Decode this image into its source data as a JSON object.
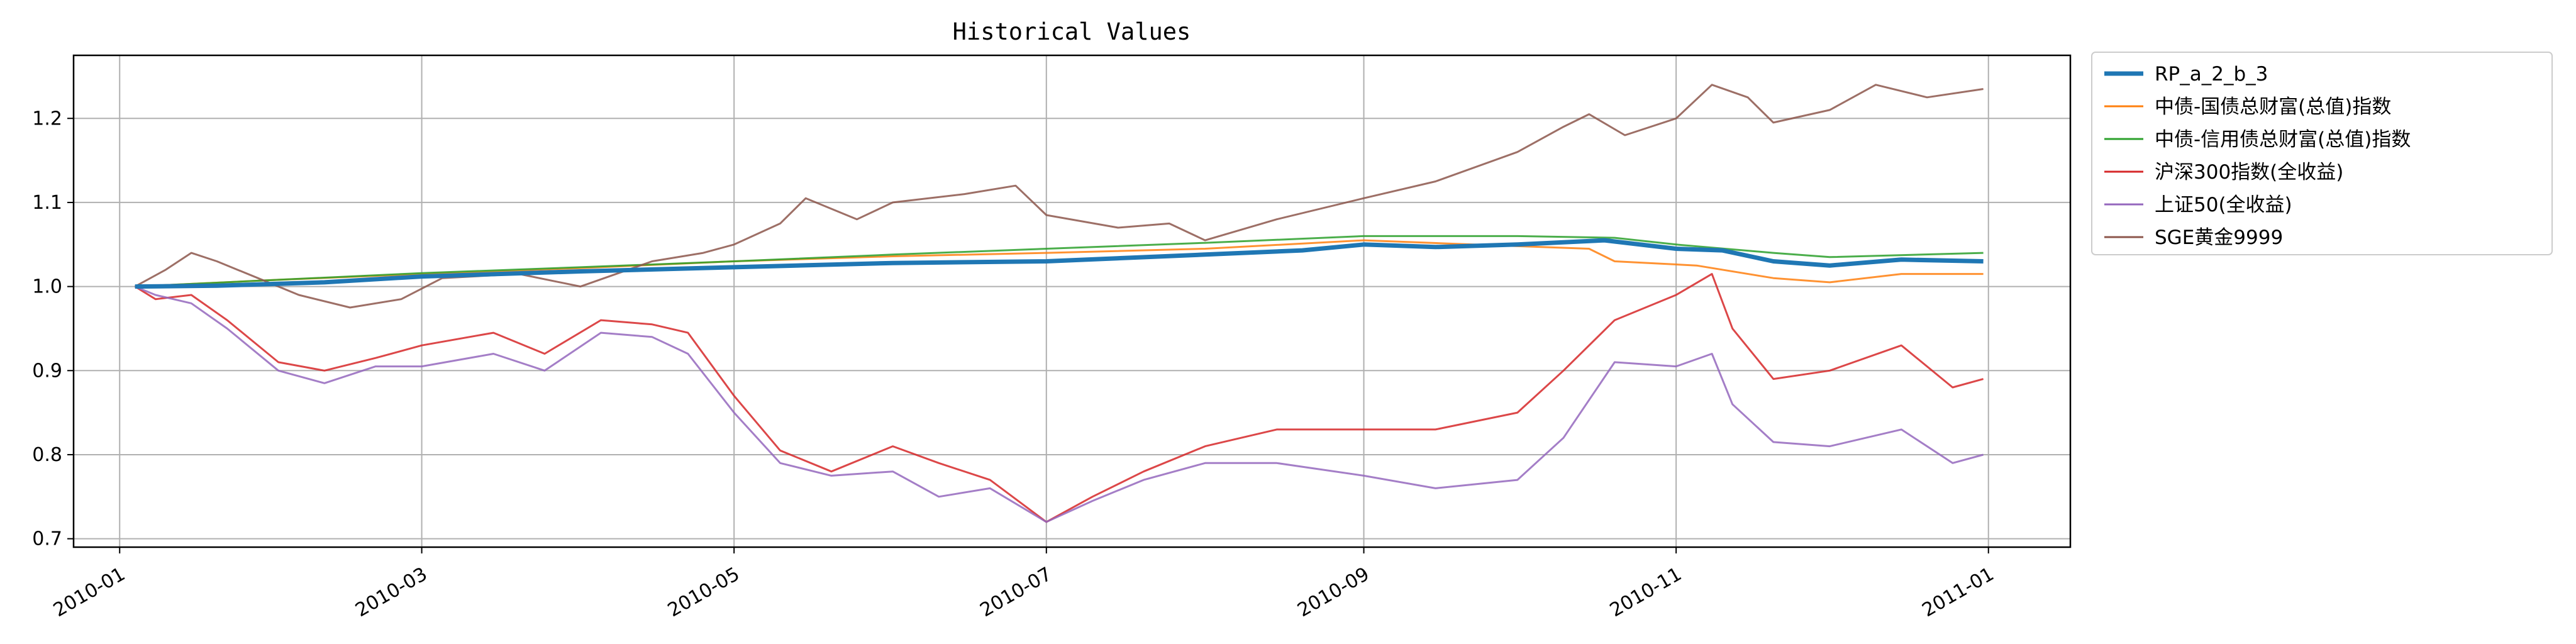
{
  "chart_data": {
    "type": "line",
    "title": "Historical Values",
    "xlabel": "",
    "ylabel": "",
    "xlim": [
      "2009-12-23",
      "2011-01-17"
    ],
    "ylim": [
      0.69,
      1.275
    ],
    "x_ticks": [
      "2010-01-01",
      "2010-03-01",
      "2010-05-01",
      "2010-07-01",
      "2010-09-01",
      "2010-11-01",
      "2011-01-01"
    ],
    "x_tick_labels": [
      "2010-01",
      "2010-03",
      "2010-05",
      "2010-07",
      "2010-09",
      "2010-11",
      "2011-01"
    ],
    "y_ticks": [
      0.7,
      0.8,
      0.9,
      1.0,
      1.1,
      1.2
    ],
    "y_tick_labels": [
      "0.7",
      "0.8",
      "0.9",
      "1.0",
      "1.1",
      "1.2"
    ],
    "grid": true,
    "legend_position": "outside-top-right",
    "series": [
      {
        "name": "RP_a_2_b_3",
        "color": "#1f77b4",
        "points": [
          [
            "2010-01-04",
            1.0
          ],
          [
            "2010-01-20",
            1.001
          ],
          [
            "2010-02-10",
            1.005
          ],
          [
            "2010-03-01",
            1.012
          ],
          [
            "2010-04-01",
            1.018
          ],
          [
            "2010-05-01",
            1.023
          ],
          [
            "2010-06-01",
            1.028
          ],
          [
            "2010-07-01",
            1.03
          ],
          [
            "2010-08-01",
            1.038
          ],
          [
            "2010-08-20",
            1.043
          ],
          [
            "2010-09-01",
            1.05
          ],
          [
            "2010-09-15",
            1.047
          ],
          [
            "2010-10-01",
            1.05
          ],
          [
            "2010-10-18",
            1.055
          ],
          [
            "2010-11-01",
            1.045
          ],
          [
            "2010-11-10",
            1.043
          ],
          [
            "2010-11-20",
            1.03
          ],
          [
            "2010-12-01",
            1.025
          ],
          [
            "2010-12-15",
            1.032
          ],
          [
            "2010-12-31",
            1.03
          ]
        ]
      },
      {
        "name": "中债-国债总财富(总值)指数",
        "color": "#ff7f0e",
        "points": [
          [
            "2010-01-04",
            1.0
          ],
          [
            "2010-02-01",
            1.008
          ],
          [
            "2010-03-01",
            1.015
          ],
          [
            "2010-04-01",
            1.022
          ],
          [
            "2010-05-01",
            1.03
          ],
          [
            "2010-06-01",
            1.036
          ],
          [
            "2010-07-01",
            1.04
          ],
          [
            "2010-08-01",
            1.045
          ],
          [
            "2010-09-01",
            1.055
          ],
          [
            "2010-10-01",
            1.048
          ],
          [
            "2010-10-15",
            1.045
          ],
          [
            "2010-10-20",
            1.03
          ],
          [
            "2010-11-05",
            1.025
          ],
          [
            "2010-11-20",
            1.01
          ],
          [
            "2010-12-01",
            1.005
          ],
          [
            "2010-12-15",
            1.015
          ],
          [
            "2010-12-31",
            1.015
          ]
        ]
      },
      {
        "name": "中债-信用债总财富(总值)指数",
        "color": "#2ca02c",
        "points": [
          [
            "2010-01-04",
            1.0
          ],
          [
            "2010-02-01",
            1.008
          ],
          [
            "2010-03-01",
            1.016
          ],
          [
            "2010-04-01",
            1.023
          ],
          [
            "2010-05-01",
            1.03
          ],
          [
            "2010-06-01",
            1.038
          ],
          [
            "2010-07-01",
            1.045
          ],
          [
            "2010-08-01",
            1.052
          ],
          [
            "2010-09-01",
            1.06
          ],
          [
            "2010-10-01",
            1.06
          ],
          [
            "2010-10-20",
            1.058
          ],
          [
            "2010-11-01",
            1.05
          ],
          [
            "2010-11-20",
            1.04
          ],
          [
            "2010-12-01",
            1.035
          ],
          [
            "2010-12-31",
            1.04
          ]
        ]
      },
      {
        "name": "沪深300指数(全收益)",
        "color": "#d62728",
        "points": [
          [
            "2010-01-04",
            1.0
          ],
          [
            "2010-01-08",
            0.985
          ],
          [
            "2010-01-15",
            0.99
          ],
          [
            "2010-01-22",
            0.96
          ],
          [
            "2010-02-01",
            0.91
          ],
          [
            "2010-02-10",
            0.9
          ],
          [
            "2010-02-20",
            0.915
          ],
          [
            "2010-03-01",
            0.93
          ],
          [
            "2010-03-15",
            0.945
          ],
          [
            "2010-03-25",
            0.92
          ],
          [
            "2010-04-05",
            0.96
          ],
          [
            "2010-04-15",
            0.955
          ],
          [
            "2010-04-22",
            0.945
          ],
          [
            "2010-05-01",
            0.87
          ],
          [
            "2010-05-10",
            0.805
          ],
          [
            "2010-05-20",
            0.78
          ],
          [
            "2010-06-01",
            0.81
          ],
          [
            "2010-06-10",
            0.79
          ],
          [
            "2010-06-20",
            0.77
          ],
          [
            "2010-07-01",
            0.72
          ],
          [
            "2010-07-10",
            0.75
          ],
          [
            "2010-07-20",
            0.78
          ],
          [
            "2010-08-01",
            0.81
          ],
          [
            "2010-08-15",
            0.83
          ],
          [
            "2010-09-01",
            0.83
          ],
          [
            "2010-09-15",
            0.83
          ],
          [
            "2010-10-01",
            0.85
          ],
          [
            "2010-10-10",
            0.9
          ],
          [
            "2010-10-20",
            0.96
          ],
          [
            "2010-11-01",
            0.99
          ],
          [
            "2010-11-08",
            1.015
          ],
          [
            "2010-11-12",
            0.95
          ],
          [
            "2010-11-20",
            0.89
          ],
          [
            "2010-12-01",
            0.9
          ],
          [
            "2010-12-15",
            0.93
          ],
          [
            "2010-12-25",
            0.88
          ],
          [
            "2010-12-31",
            0.89
          ]
        ]
      },
      {
        "name": "上证50(全收益)",
        "color": "#9467bd",
        "points": [
          [
            "2010-01-04",
            1.0
          ],
          [
            "2010-01-08",
            0.99
          ],
          [
            "2010-01-15",
            0.98
          ],
          [
            "2010-01-22",
            0.95
          ],
          [
            "2010-02-01",
            0.9
          ],
          [
            "2010-02-10",
            0.885
          ],
          [
            "2010-02-20",
            0.905
          ],
          [
            "2010-03-01",
            0.905
          ],
          [
            "2010-03-15",
            0.92
          ],
          [
            "2010-03-25",
            0.9
          ],
          [
            "2010-04-05",
            0.945
          ],
          [
            "2010-04-15",
            0.94
          ],
          [
            "2010-04-22",
            0.92
          ],
          [
            "2010-05-01",
            0.85
          ],
          [
            "2010-05-10",
            0.79
          ],
          [
            "2010-05-20",
            0.775
          ],
          [
            "2010-06-01",
            0.78
          ],
          [
            "2010-06-10",
            0.75
          ],
          [
            "2010-06-20",
            0.76
          ],
          [
            "2010-07-01",
            0.72
          ],
          [
            "2010-07-10",
            0.745
          ],
          [
            "2010-07-20",
            0.77
          ],
          [
            "2010-08-01",
            0.79
          ],
          [
            "2010-08-15",
            0.79
          ],
          [
            "2010-09-01",
            0.775
          ],
          [
            "2010-09-15",
            0.76
          ],
          [
            "2010-10-01",
            0.77
          ],
          [
            "2010-10-10",
            0.82
          ],
          [
            "2010-10-20",
            0.91
          ],
          [
            "2010-11-01",
            0.905
          ],
          [
            "2010-11-08",
            0.92
          ],
          [
            "2010-11-12",
            0.86
          ],
          [
            "2010-11-20",
            0.815
          ],
          [
            "2010-12-01",
            0.81
          ],
          [
            "2010-12-15",
            0.83
          ],
          [
            "2010-12-25",
            0.79
          ],
          [
            "2010-12-31",
            0.8
          ]
        ]
      },
      {
        "name": "SGE黄金9999",
        "color": "#8c564b",
        "points": [
          [
            "2010-01-04",
            1.0
          ],
          [
            "2010-01-10",
            1.02
          ],
          [
            "2010-01-15",
            1.04
          ],
          [
            "2010-01-20",
            1.03
          ],
          [
            "2010-01-28",
            1.01
          ],
          [
            "2010-02-05",
            0.99
          ],
          [
            "2010-02-15",
            0.975
          ],
          [
            "2010-02-25",
            0.985
          ],
          [
            "2010-03-05",
            1.01
          ],
          [
            "2010-03-20",
            1.015
          ],
          [
            "2010-04-01",
            1.0
          ],
          [
            "2010-04-15",
            1.03
          ],
          [
            "2010-04-25",
            1.04
          ],
          [
            "2010-05-01",
            1.05
          ],
          [
            "2010-05-10",
            1.075
          ],
          [
            "2010-05-15",
            1.105
          ],
          [
            "2010-05-25",
            1.08
          ],
          [
            "2010-06-01",
            1.1
          ],
          [
            "2010-06-15",
            1.11
          ],
          [
            "2010-06-25",
            1.12
          ],
          [
            "2010-07-01",
            1.085
          ],
          [
            "2010-07-15",
            1.07
          ],
          [
            "2010-07-25",
            1.075
          ],
          [
            "2010-08-01",
            1.055
          ],
          [
            "2010-08-15",
            1.08
          ],
          [
            "2010-09-01",
            1.105
          ],
          [
            "2010-09-15",
            1.125
          ],
          [
            "2010-10-01",
            1.16
          ],
          [
            "2010-10-10",
            1.19
          ],
          [
            "2010-10-15",
            1.205
          ],
          [
            "2010-10-22",
            1.18
          ],
          [
            "2010-11-01",
            1.2
          ],
          [
            "2010-11-08",
            1.24
          ],
          [
            "2010-11-15",
            1.225
          ],
          [
            "2010-11-20",
            1.195
          ],
          [
            "2010-12-01",
            1.21
          ],
          [
            "2010-12-10",
            1.24
          ],
          [
            "2010-12-20",
            1.225
          ],
          [
            "2010-12-31",
            1.235
          ]
        ]
      }
    ]
  }
}
